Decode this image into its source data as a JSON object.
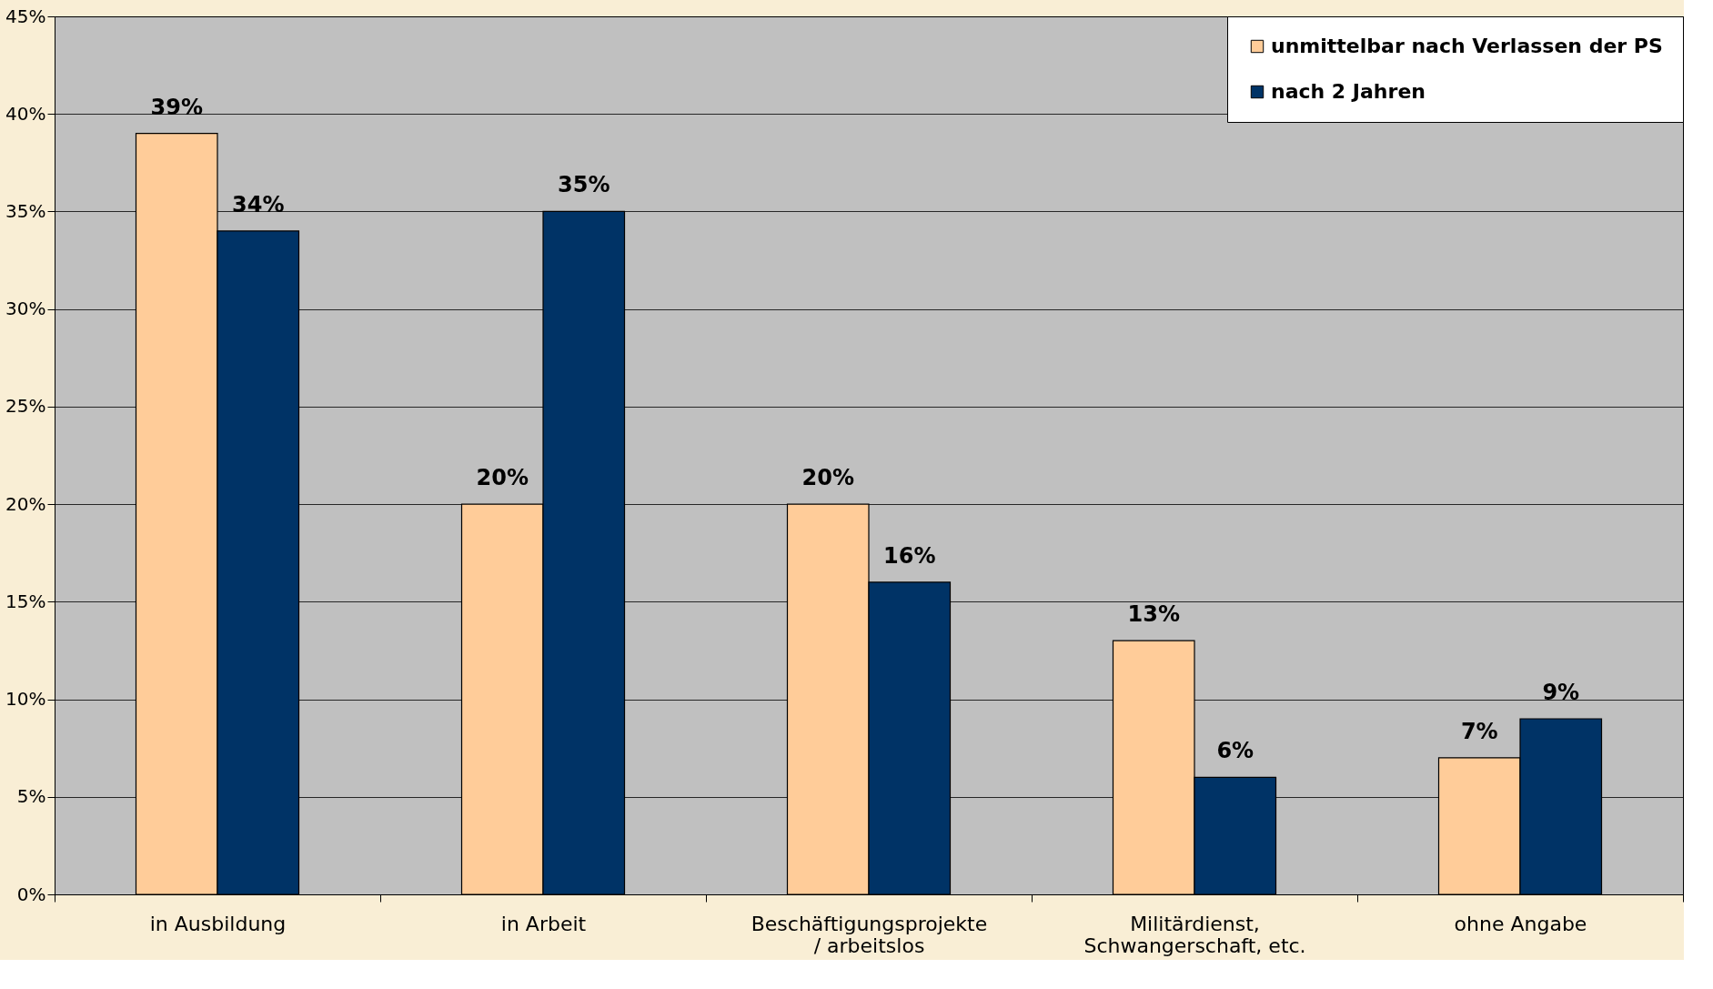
{
  "chart_data": {
    "type": "bar",
    "categories": [
      "in Ausbildung",
      "in Arbeit",
      "Beschäftigungsprojekte\n/ arbeitslos",
      "Militärdienst,\nSchwangerschaft, etc.",
      "ohne Angabe"
    ],
    "series": [
      {
        "name": "unmittelbar nach Verlassen der PS",
        "color": "#ffcc99",
        "values": [
          39,
          20,
          20,
          13,
          7
        ],
        "value_labels": [
          "39%",
          "20%",
          "20%",
          "13%",
          "7%"
        ]
      },
      {
        "name": "nach 2 Jahren",
        "color": "#003366",
        "values": [
          34,
          35,
          16,
          6,
          9
        ],
        "value_labels": [
          "34%",
          "35%",
          "16%",
          "6%",
          "9%"
        ]
      }
    ],
    "ylim": [
      0,
      45
    ],
    "yticks": [
      {
        "value": 0,
        "label": "0%"
      },
      {
        "value": 5,
        "label": "5%"
      },
      {
        "value": 10,
        "label": "10%"
      },
      {
        "value": 15,
        "label": "15%"
      },
      {
        "value": 20,
        "label": "20%"
      },
      {
        "value": 25,
        "label": "25%"
      },
      {
        "value": 30,
        "label": "30%"
      },
      {
        "value": 35,
        "label": "35%"
      },
      {
        "value": 40,
        "label": "40%"
      },
      {
        "value": 45,
        "label": "45%"
      }
    ],
    "grid": "y",
    "legend": "top right"
  }
}
